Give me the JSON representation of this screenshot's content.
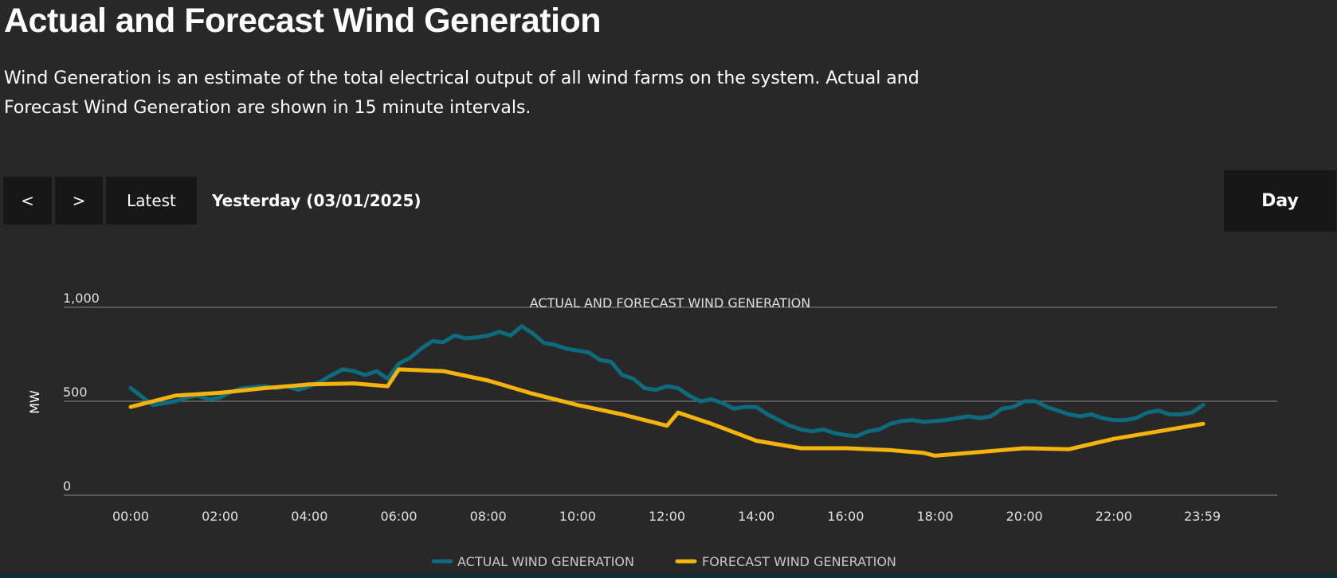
{
  "header": {
    "title": "Actual and Forecast Wind Generation",
    "description": "Wind Generation is an estimate of the total electrical output of all wind farms on the system. Actual and Forecast Wind Generation are shown in 15 minute intervals."
  },
  "controls": {
    "prev_label": "<",
    "next_label": ">",
    "latest_label": "Latest",
    "date_label": "Yesterday (03/01/2025)",
    "period_label": "Day"
  },
  "chart_data": {
    "type": "line",
    "title": "ACTUAL AND FORECAST WIND GENERATION",
    "xlabel": "",
    "ylabel": "MW",
    "ylim": [
      0,
      1000
    ],
    "yticks": [
      0,
      500,
      1000
    ],
    "ytick_labels": [
      "0",
      "500",
      "1,000"
    ],
    "x_unit": "hours",
    "xlim": [
      0,
      24
    ],
    "xtick_labels": [
      "00:00",
      "02:00",
      "04:00",
      "06:00",
      "08:00",
      "10:00",
      "12:00",
      "14:00",
      "16:00",
      "18:00",
      "20:00",
      "22:00",
      "23:59"
    ],
    "xtick_values": [
      0,
      2,
      4,
      6,
      8,
      10,
      12,
      14,
      16,
      18,
      20,
      22,
      23.983
    ],
    "grid": true,
    "legend_position": "bottom",
    "colors": {
      "actual": "#0e6b7d",
      "forecast": "#f5b40c",
      "gridline": "#8a8a8a",
      "text": "#e0e0e0"
    },
    "series": [
      {
        "name": "ACTUAL WIND GENERATION",
        "color": "#0e6b7d",
        "points": [
          [
            0,
            570
          ],
          [
            0.25,
            525
          ],
          [
            0.5,
            480
          ],
          [
            0.75,
            490
          ],
          [
            1,
            500
          ],
          [
            1.25,
            520
          ],
          [
            1.5,
            530
          ],
          [
            1.75,
            510
          ],
          [
            2,
            520
          ],
          [
            2.25,
            550
          ],
          [
            2.5,
            570
          ],
          [
            2.75,
            575
          ],
          [
            3,
            580
          ],
          [
            3.25,
            570
          ],
          [
            3.5,
            580
          ],
          [
            3.75,
            560
          ],
          [
            4,
            580
          ],
          [
            4.25,
            605
          ],
          [
            4.5,
            640
          ],
          [
            4.75,
            670
          ],
          [
            5,
            660
          ],
          [
            5.25,
            640
          ],
          [
            5.5,
            660
          ],
          [
            5.75,
            620
          ],
          [
            6,
            700
          ],
          [
            6.25,
            730
          ],
          [
            6.5,
            780
          ],
          [
            6.75,
            820
          ],
          [
            7,
            815
          ],
          [
            7.25,
            850
          ],
          [
            7.5,
            835
          ],
          [
            7.75,
            840
          ],
          [
            8,
            850
          ],
          [
            8.25,
            870
          ],
          [
            8.5,
            850
          ],
          [
            8.75,
            900
          ],
          [
            9,
            860
          ],
          [
            9.25,
            810
          ],
          [
            9.5,
            800
          ],
          [
            9.75,
            780
          ],
          [
            10,
            770
          ],
          [
            10.25,
            760
          ],
          [
            10.5,
            720
          ],
          [
            10.75,
            710
          ],
          [
            11,
            640
          ],
          [
            11.25,
            620
          ],
          [
            11.5,
            570
          ],
          [
            11.75,
            560
          ],
          [
            12,
            580
          ],
          [
            12.25,
            570
          ],
          [
            12.5,
            530
          ],
          [
            12.75,
            500
          ],
          [
            13,
            510
          ],
          [
            13.25,
            490
          ],
          [
            13.5,
            460
          ],
          [
            13.75,
            470
          ],
          [
            14,
            470
          ],
          [
            14.25,
            430
          ],
          [
            14.5,
            400
          ],
          [
            14.75,
            370
          ],
          [
            15,
            350
          ],
          [
            15.25,
            340
          ],
          [
            15.5,
            350
          ],
          [
            15.75,
            330
          ],
          [
            16,
            320
          ],
          [
            16.25,
            315
          ],
          [
            16.5,
            340
          ],
          [
            16.75,
            350
          ],
          [
            17,
            380
          ],
          [
            17.25,
            395
          ],
          [
            17.5,
            400
          ],
          [
            17.75,
            390
          ],
          [
            18,
            395
          ],
          [
            18.25,
            400
          ],
          [
            18.5,
            410
          ],
          [
            18.75,
            420
          ],
          [
            19,
            410
          ],
          [
            19.25,
            420
          ],
          [
            19.5,
            460
          ],
          [
            19.75,
            470
          ],
          [
            20,
            500
          ],
          [
            20.25,
            500
          ],
          [
            20.5,
            470
          ],
          [
            20.75,
            450
          ],
          [
            21,
            430
          ],
          [
            21.25,
            420
          ],
          [
            21.5,
            430
          ],
          [
            21.75,
            410
          ],
          [
            22,
            400
          ],
          [
            22.25,
            400
          ],
          [
            22.5,
            410
          ],
          [
            22.75,
            440
          ],
          [
            23,
            450
          ],
          [
            23.25,
            430
          ],
          [
            23.5,
            430
          ],
          [
            23.75,
            440
          ],
          [
            24,
            480
          ]
        ]
      },
      {
        "name": "FORECAST WIND GENERATION",
        "color": "#f5b40c",
        "points": [
          [
            0,
            470
          ],
          [
            0.5,
            500
          ],
          [
            1,
            530
          ],
          [
            2,
            545
          ],
          [
            3,
            570
          ],
          [
            4,
            590
          ],
          [
            5,
            595
          ],
          [
            5.75,
            580
          ],
          [
            6,
            670
          ],
          [
            7,
            660
          ],
          [
            8,
            610
          ],
          [
            9,
            540
          ],
          [
            10,
            480
          ],
          [
            11,
            430
          ],
          [
            12,
            370
          ],
          [
            12.25,
            440
          ],
          [
            13,
            380
          ],
          [
            14,
            290
          ],
          [
            15,
            250
          ],
          [
            16,
            250
          ],
          [
            17,
            240
          ],
          [
            17.75,
            225
          ],
          [
            18,
            210
          ],
          [
            19,
            230
          ],
          [
            20,
            250
          ],
          [
            21,
            245
          ],
          [
            22,
            300
          ],
          [
            23,
            340
          ],
          [
            24,
            380
          ]
        ]
      }
    ]
  }
}
